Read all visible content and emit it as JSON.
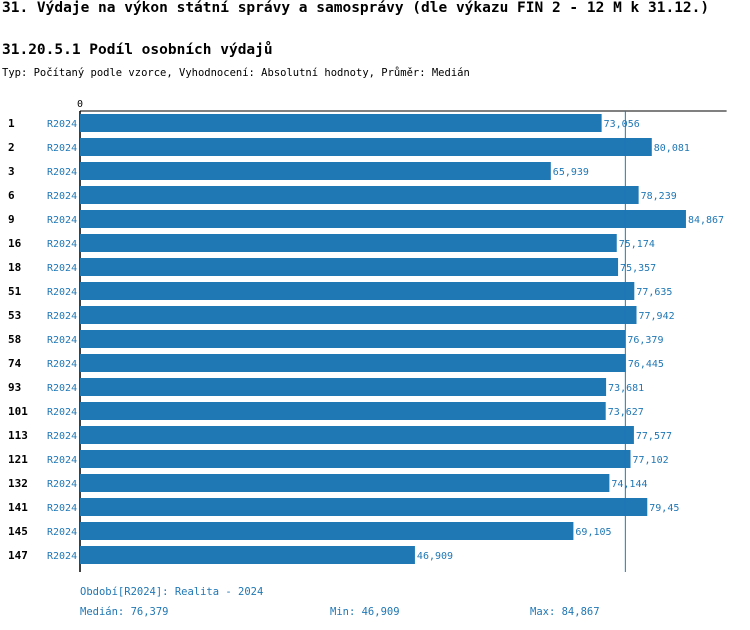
{
  "header": {
    "title": "31. Výdaje na výkon státní správy a samosprávy (dle výkazu FIN 2 - 12 M k 31.12.)",
    "subtitle": "31.20.5.1 Podíl osobních výdajů",
    "meta": "Typ: Počítaný podle vzorce, Vyhodnocení: Absolutní hodnoty, Průměr: Medián"
  },
  "chart_data": {
    "type": "bar",
    "orientation": "horizontal",
    "x_tick_label": "0",
    "xlim": [
      0,
      90
    ],
    "categories": [
      "1",
      "2",
      "3",
      "6",
      "9",
      "16",
      "18",
      "51",
      "53",
      "58",
      "74",
      "93",
      "101",
      "113",
      "121",
      "132",
      "141",
      "145",
      "147"
    ],
    "series_label": "R2024",
    "values": [
      73.056,
      80.081,
      65.939,
      78.239,
      84.867,
      75.174,
      75.357,
      77.635,
      77.942,
      76.379,
      76.445,
      73.681,
      73.627,
      77.577,
      77.102,
      74.144,
      79.45,
      69.105,
      46.909
    ],
    "value_labels": [
      "73,056",
      "80,081",
      "65,939",
      "78,239",
      "84,867",
      "75,174",
      "75,357",
      "77,635",
      "77,942",
      "76,379",
      "76,445",
      "73,681",
      "73,627",
      "77,577",
      "77,102",
      "74,144",
      "79,45",
      "69,105",
      "46,909"
    ],
    "median_line": 76.379,
    "bar_color": "#1f77b4",
    "grid": false
  },
  "footer": {
    "period": "Období[R2024]: Realita - 2024",
    "median": "Medián: 76,379",
    "min": "Min: 46,909",
    "max": "Max: 84,867"
  }
}
